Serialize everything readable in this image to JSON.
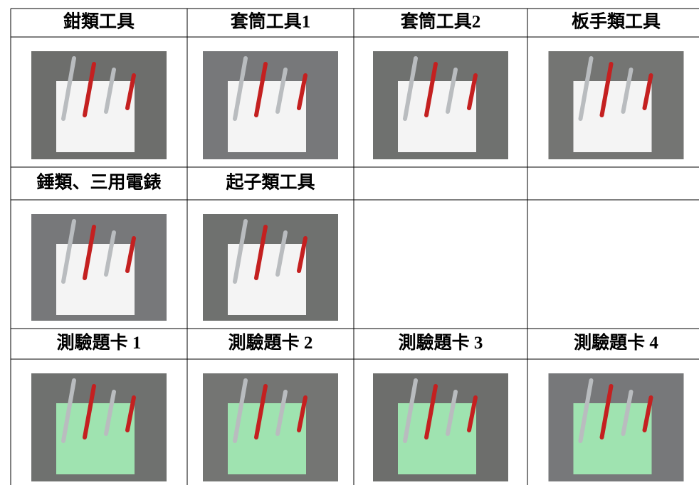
{
  "table": {
    "rows": [
      [
        "鉗類工具",
        "套筒工具1",
        "套筒工具2",
        "板手類工具"
      ],
      [
        "錘類、三用電錶",
        "起子類工具"
      ],
      [
        "測驗題卡 1",
        "測驗題卡 2",
        "測驗題卡 3",
        "測驗題卡 4"
      ]
    ]
  }
}
